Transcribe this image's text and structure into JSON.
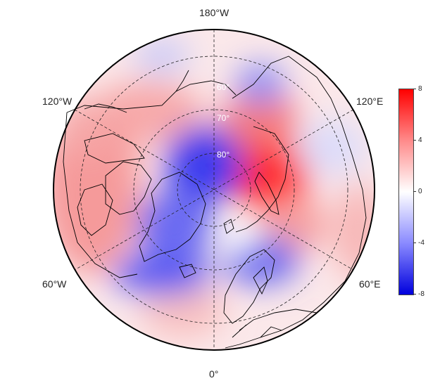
{
  "map": {
    "lon_labels": {
      "top": "180°W",
      "upper_left": "120°W",
      "upper_right": "120°E",
      "lower_left": "60°W",
      "lower_right": "60°E",
      "bottom": "0°"
    },
    "lat_labels": [
      "80°",
      "70°",
      "60°"
    ],
    "colors": {
      "positive_max": "#ff0000",
      "neutral": "#ffffff",
      "negative_max": "#0000dd",
      "coast": "#000000"
    }
  },
  "colorbar": {
    "ticks": [
      "8",
      "4",
      "0",
      "-4",
      "-8"
    ],
    "range": [
      -8,
      8
    ]
  }
}
